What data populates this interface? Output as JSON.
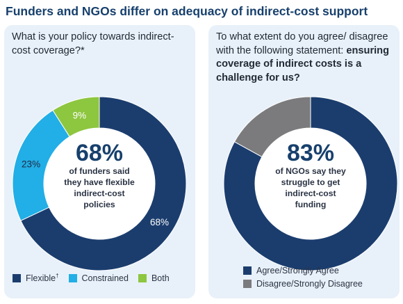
{
  "title": "Funders and NGOs differ on adequacy of indirect-cost support",
  "colors": {
    "navy": "#1b3d6e",
    "light_blue": "#22aee6",
    "green": "#8dc63f",
    "gray": "#7b7b7d",
    "panel_bg": "#e8f1f9"
  },
  "left": {
    "question": "What is your policy towards indirect-cost coverage?*",
    "center_value": "68%",
    "center_caption_lines": [
      "of funders said",
      "they have flexible",
      "indirect-cost",
      "policies"
    ],
    "legend": {
      "flexible": "Flexible",
      "flexible_mark": "†",
      "constrained": "Constrained",
      "both": "Both"
    }
  },
  "right": {
    "question_plain": "To what extent do you agree/ disagree with the following statement: ",
    "question_bold": "ensuring coverage of indirect costs is a challenge for us?",
    "center_value": "83%",
    "center_caption_lines": [
      "of NGOs say they",
      "struggle to get",
      "indirect-cost",
      "funding"
    ],
    "legend": {
      "agree": "Agree/Strongly Agree",
      "disagree": "Disagree/Strongly Disagree"
    }
  },
  "chart_data": [
    {
      "type": "pie",
      "categories": [
        "Flexible",
        "Constrained",
        "Both"
      ],
      "values": [
        68,
        23,
        9
      ],
      "labels": [
        "68%",
        "23%",
        "9%"
      ],
      "colors": [
        "#1b3d6e",
        "#22aee6",
        "#8dc63f"
      ]
    },
    {
      "type": "pie",
      "categories": [
        "Agree/Strongly Agree",
        "Disagree/Strongly Disagree"
      ],
      "values": [
        83,
        17
      ],
      "labels": [],
      "colors": [
        "#1b3d6e",
        "#7b7b7d"
      ]
    }
  ]
}
